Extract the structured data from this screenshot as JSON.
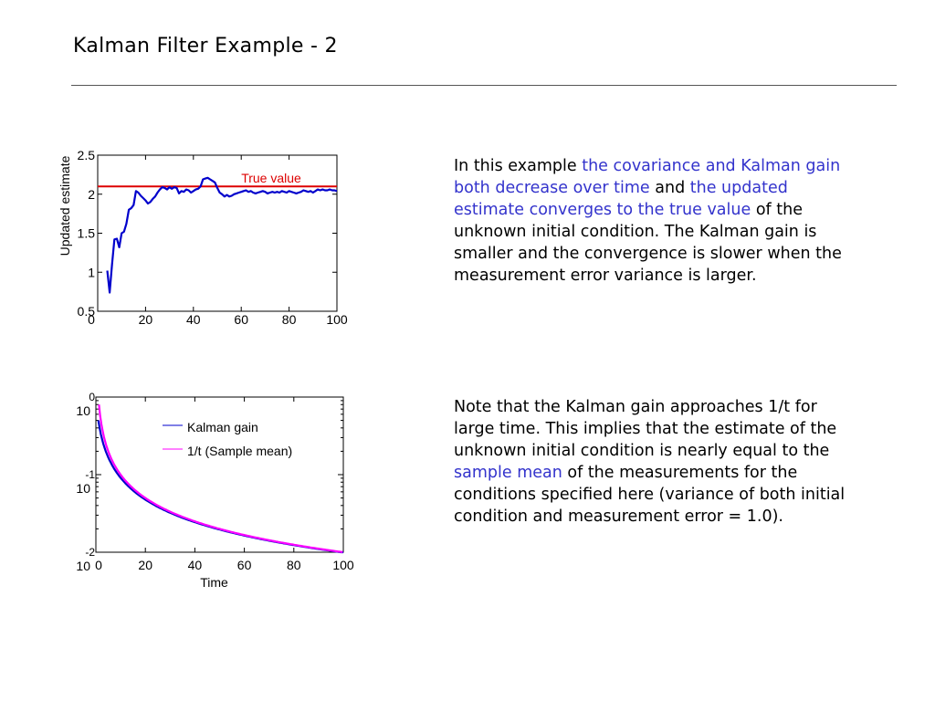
{
  "slide": {
    "title": "Kalman Filter Example - 2"
  },
  "paragraph1": {
    "s1": "In this example ",
    "h1": "the covariance and Kalman gain both decrease over time",
    "s2": " and ",
    "h2": "the updated estimate converges to the true value",
    "s3": " of the unknown initial condition.  The Kalman gain is smaller and the convergence is slower when the measurement error variance is larger."
  },
  "paragraph2": {
    "s1": "Note that the Kalman gain approaches 1/t for large time.  This implies that the estimate of the unknown initial condition is nearly equal to the ",
    "h1": "sample mean",
    "s2": " of the measurements for the conditions specified here (variance of both initial condition and measurement error = 1.0)."
  },
  "colors": {
    "estimate_line": "#0000cc",
    "true_value_line": "#dd0000",
    "kalman_gain_line": "#0000cc",
    "sample_mean_line": "#ff00ff",
    "highlight_text": "#3333cc"
  },
  "chart_data": [
    {
      "type": "line",
      "title": "",
      "xlabel": "",
      "ylabel": "Updated estimate",
      "xlim": [
        0,
        100
      ],
      "ylim": [
        0.5,
        2.5
      ],
      "xticks": [
        "0",
        "20",
        "40",
        "60",
        "80",
        "100"
      ],
      "yticks": [
        "0.5",
        "1",
        "1.5",
        "2",
        "2.5"
      ],
      "annotation": "True value",
      "true_value": 2.1,
      "series": [
        {
          "x": [
            4,
            5,
            6,
            7,
            8,
            9,
            10,
            11,
            12,
            13,
            14,
            15,
            16,
            17,
            18,
            19,
            20,
            21,
            22,
            23,
            24,
            25,
            26,
            27,
            28,
            29,
            30,
            31,
            32,
            33,
            34,
            35,
            36,
            37,
            38,
            39,
            40,
            41,
            42,
            43,
            44,
            45,
            46,
            47,
            48,
            49,
            50,
            51,
            52,
            53,
            54,
            55,
            56,
            57,
            58,
            59,
            60,
            61,
            62,
            63,
            64,
            65,
            66,
            67,
            68,
            69,
            70,
            71,
            72,
            73,
            74,
            75,
            76,
            77,
            78,
            79,
            80,
            81,
            82,
            83,
            84,
            85,
            86,
            87,
            88,
            89,
            90,
            91,
            92,
            93,
            94,
            95,
            96,
            97,
            98,
            99,
            100
          ],
          "y": [
            1.02,
            0.74,
            1.1,
            1.42,
            1.43,
            1.32,
            1.5,
            1.52,
            1.62,
            1.8,
            1.82,
            1.86,
            2.04,
            2.02,
            1.98,
            1.95,
            1.92,
            1.88,
            1.9,
            1.94,
            1.97,
            2.02,
            2.06,
            2.09,
            2.08,
            2.06,
            2.09,
            2.07,
            2.09,
            2.08,
            2.01,
            2.04,
            2.03,
            2.06,
            2.05,
            2.02,
            2.04,
            2.06,
            2.07,
            2.1,
            2.19,
            2.2,
            2.21,
            2.19,
            2.17,
            2.15,
            2.08,
            2.02,
            2.0,
            1.97,
            1.99,
            1.97,
            1.98,
            2.0,
            2.01,
            2.02,
            2.03,
            2.04,
            2.05,
            2.03,
            2.04,
            2.02,
            2.01,
            2.02,
            2.03,
            2.04,
            2.03,
            2.01,
            2.02,
            2.03,
            2.02,
            2.03,
            2.02,
            2.04,
            2.03,
            2.02,
            2.04,
            2.03,
            2.02,
            2.01,
            2.02,
            2.03,
            2.05,
            2.04,
            2.03,
            2.04,
            2.02,
            2.04,
            2.06,
            2.05,
            2.06,
            2.05,
            2.05,
            2.06,
            2.05,
            2.05,
            2.04
          ]
        }
      ]
    },
    {
      "type": "line",
      "title": "",
      "xlabel": "Time",
      "ylabel": "",
      "xlim": [
        0,
        100
      ],
      "ylim": [
        0.01,
        1
      ],
      "yscale": "log",
      "xticks": [
        "0",
        "20",
        "40",
        "60",
        "80",
        "100"
      ],
      "yticks": [
        {
          "base": "10",
          "exp": "0"
        },
        {
          "base": "10",
          "exp": "-1"
        },
        {
          "base": "10",
          "exp": "-2"
        }
      ],
      "legend": "upper-middle",
      "series": [
        {
          "name": "Kalman gain",
          "formula": "1/(t+1)",
          "x": [
            1,
            2,
            3,
            4,
            5,
            6,
            8,
            10,
            15,
            20,
            30,
            40,
            50,
            60,
            70,
            80,
            90,
            100
          ],
          "y": [
            0.5,
            0.333,
            0.25,
            0.2,
            0.167,
            0.143,
            0.111,
            0.0909,
            0.0625,
            0.0476,
            0.0323,
            0.0244,
            0.0196,
            0.0164,
            0.0141,
            0.0123,
            0.011,
            0.0099
          ]
        },
        {
          "name": "1/t (Sample mean)",
          "formula": "1/t",
          "x": [
            1,
            2,
            3,
            4,
            5,
            6,
            8,
            10,
            15,
            20,
            30,
            40,
            50,
            60,
            70,
            80,
            90,
            100
          ],
          "y": [
            1.0,
            0.5,
            0.333,
            0.25,
            0.2,
            0.167,
            0.125,
            0.1,
            0.0667,
            0.05,
            0.0333,
            0.025,
            0.02,
            0.0167,
            0.0143,
            0.0125,
            0.0111,
            0.01
          ]
        }
      ]
    }
  ]
}
